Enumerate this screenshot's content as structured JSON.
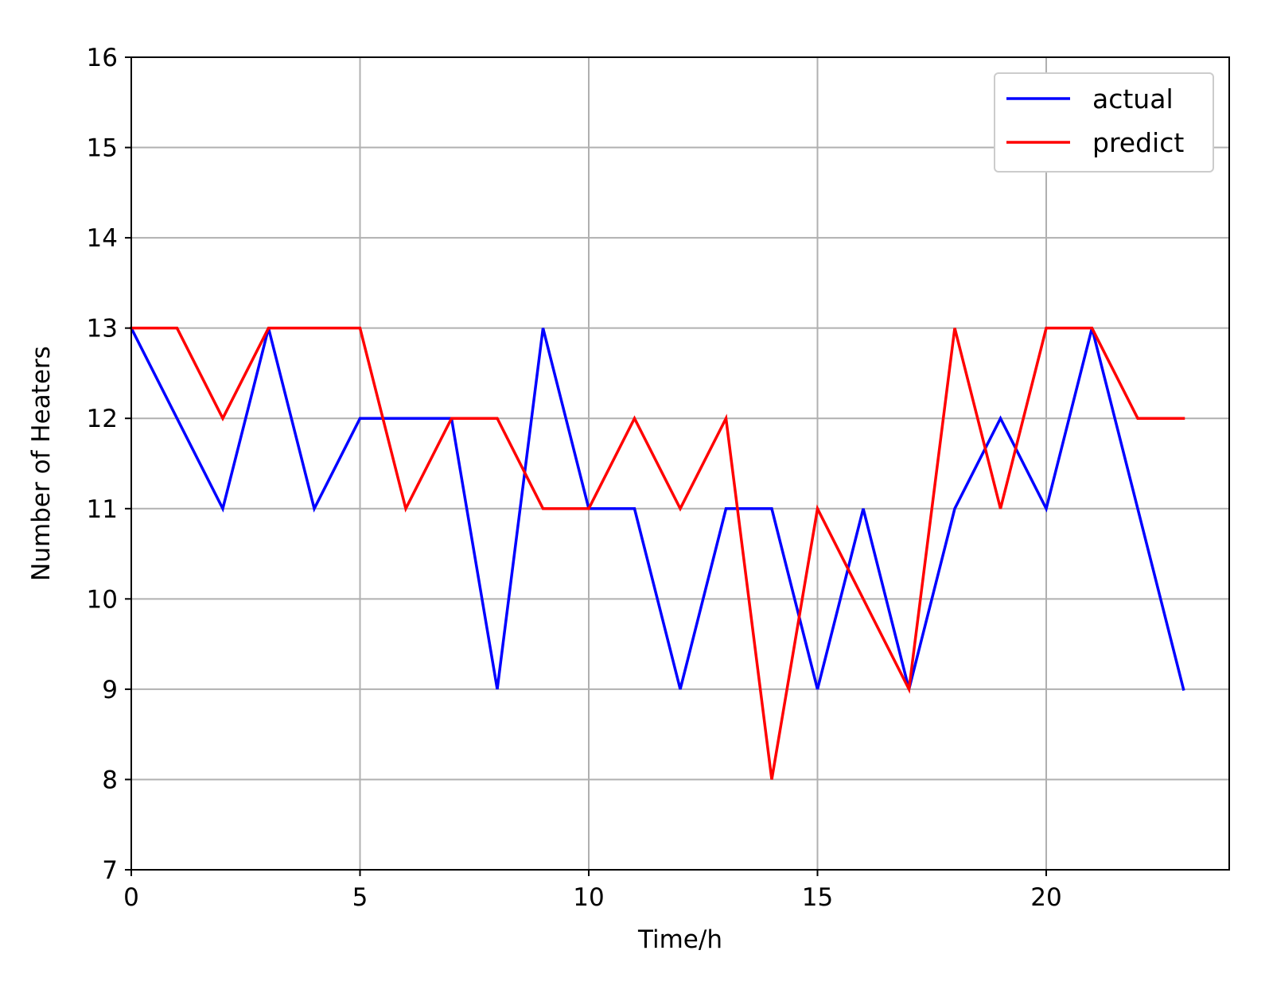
{
  "chart_data": {
    "type": "line",
    "title": "",
    "xlabel": "Time/h",
    "ylabel": "Number of Heaters",
    "xlim": [
      0,
      24
    ],
    "ylim": [
      7,
      16
    ],
    "x_ticks": [
      0,
      5,
      10,
      15,
      20
    ],
    "y_ticks": [
      7,
      8,
      9,
      10,
      11,
      12,
      13,
      14,
      15,
      16
    ],
    "grid": true,
    "legend_position": "top-right",
    "x": [
      0,
      1,
      2,
      3,
      4,
      5,
      6,
      7,
      8,
      9,
      10,
      11,
      12,
      13,
      14,
      15,
      16,
      17,
      18,
      19,
      20,
      21,
      22,
      23
    ],
    "series": [
      {
        "name": "actual",
        "color": "#0000ff",
        "values": [
          13,
          12,
          11,
          13,
          11,
          12,
          12,
          12,
          9,
          13,
          11,
          11,
          9,
          11,
          11,
          9,
          11,
          9,
          11,
          12,
          11,
          13,
          11,
          9
        ]
      },
      {
        "name": "predict",
        "color": "#ff0000",
        "values": [
          13,
          13,
          12,
          13,
          13,
          13,
          11,
          12,
          12,
          11,
          11,
          12,
          11,
          12,
          8,
          11,
          10,
          9,
          13,
          11,
          13,
          13,
          12,
          12
        ]
      }
    ]
  }
}
